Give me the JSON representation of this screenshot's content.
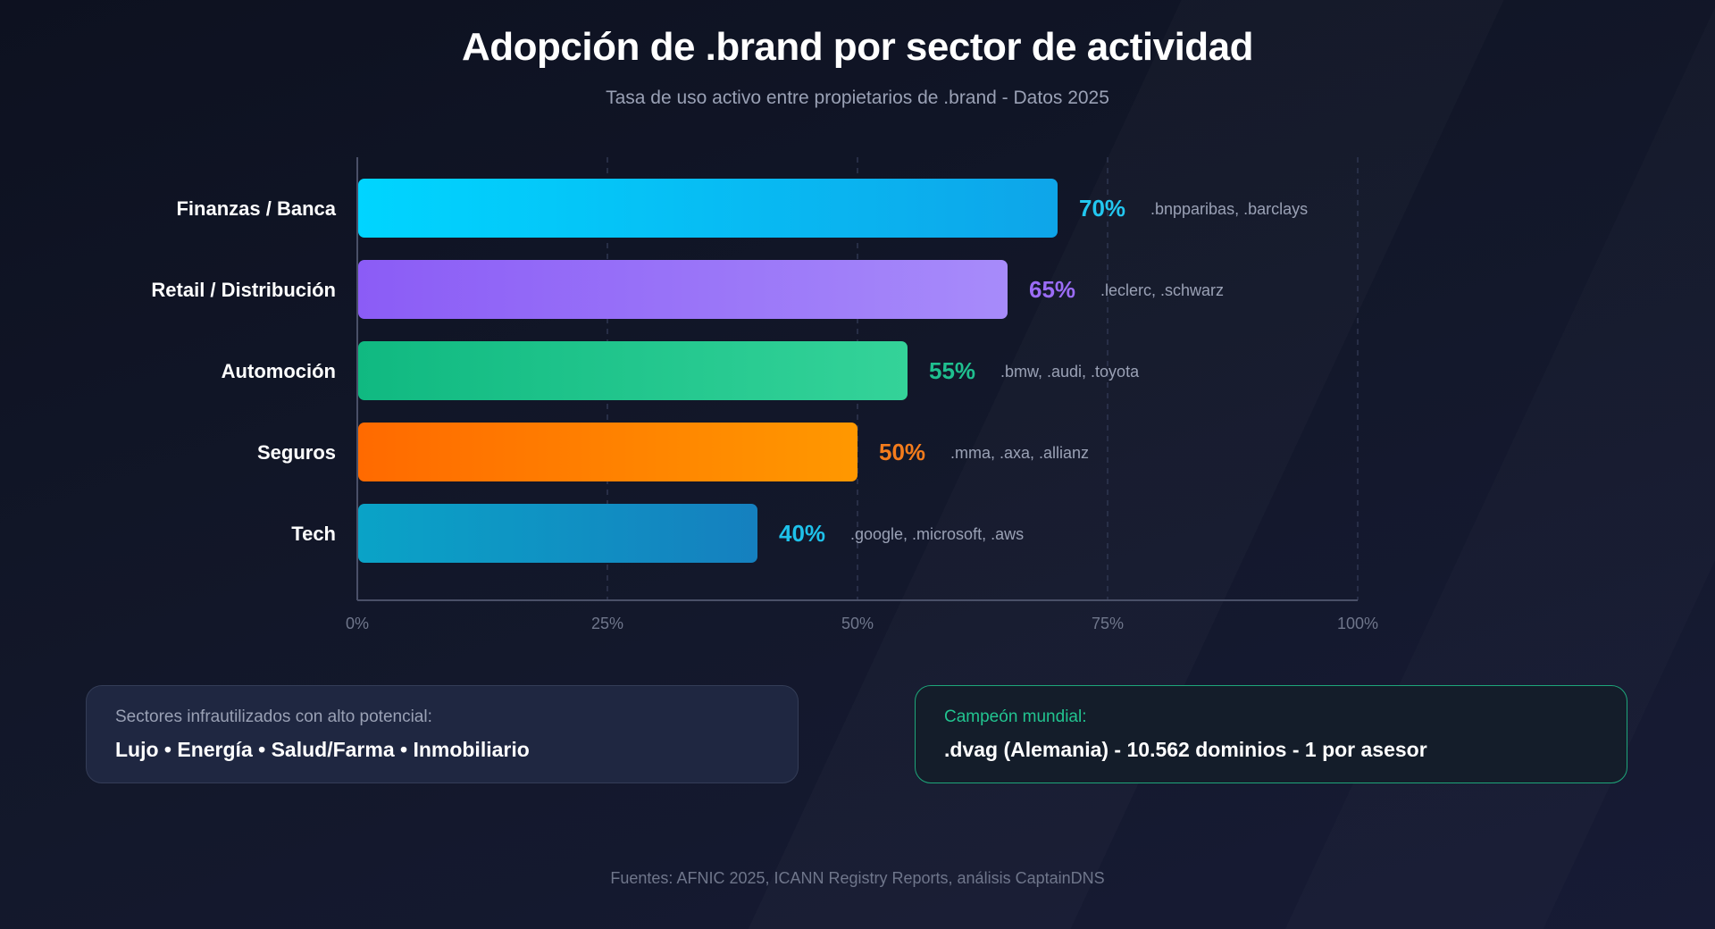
{
  "chart_data": {
    "type": "bar",
    "orientation": "horizontal",
    "title": "Adopción de .brand por sector de actividad",
    "subtitle": "Tasa de uso activo entre propietarios de .brand - Datos 2025",
    "categories": [
      "Finanzas / Banca",
      "Retail / Distribución",
      "Automoción",
      "Seguros",
      "Tech"
    ],
    "values": [
      70,
      65,
      55,
      50,
      40
    ],
    "value_labels": [
      "70%",
      "65%",
      "55%",
      "50%",
      "40%"
    ],
    "annotations": [
      ".bnpparibas, .barclays",
      ".leclerc, .schwarz",
      ".bmw, .audi, .toyota",
      ".mma, .axa, .allianz",
      ".google, .microsoft, .aws"
    ],
    "colors": [
      [
        "#00d5ff",
        "#0ea5e9"
      ],
      [
        "#8b5cf6",
        "#a78bfa"
      ],
      [
        "#10b981",
        "#34d399"
      ],
      [
        "#ff6a00",
        "#ff9800"
      ],
      [
        "#0aa3c7",
        "#1580bf"
      ]
    ],
    "label_colors": [
      "#22c7f0",
      "#9b6cf6",
      "#1fbf8f",
      "#f47c1c",
      "#1ec1ea"
    ],
    "xlim": [
      0,
      100
    ],
    "x_ticks": [
      0,
      25,
      50,
      75,
      100
    ],
    "x_tick_labels": [
      "0%",
      "25%",
      "50%",
      "75%",
      "100%"
    ],
    "xlabel": "",
    "ylabel": "",
    "grid": true
  },
  "info_left": {
    "label": "Sectores infrautilizados con alto potencial:",
    "value": "Lujo • Energía • Salud/Farma • Inmobiliario"
  },
  "info_right": {
    "label": "Campeón mundial:",
    "value": ".dvag (Alemania) - 10.562 dominios - 1 por asesor"
  },
  "footer": "Fuentes: AFNIC 2025, ICANN Registry Reports, análisis CaptainDNS"
}
